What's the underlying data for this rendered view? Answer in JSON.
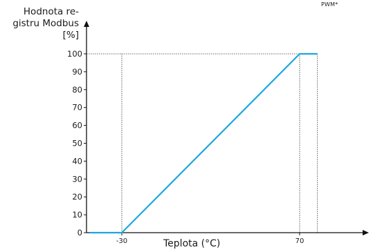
{
  "chart_data": {
    "type": "line",
    "ylabel_lines": [
      "Hodnota re-",
      "gistru Modbus",
      "[%]"
    ],
    "xlabel": "Teplota (°C)",
    "tag": "PWM*",
    "x_tick_labels": [
      "-30",
      "70"
    ],
    "y_tick_labels": [
      "0",
      "10",
      "20",
      "30",
      "40",
      "50",
      "60",
      "70",
      "80",
      "90",
      "100"
    ],
    "series": [
      {
        "x": [
          -48,
          -30,
          70,
          80
        ],
        "y": [
          0,
          0,
          100,
          100
        ],
        "color": "#1aa7dc"
      }
    ],
    "guides": {
      "x": [
        -30,
        70,
        80
      ],
      "y": [
        100
      ]
    }
  }
}
